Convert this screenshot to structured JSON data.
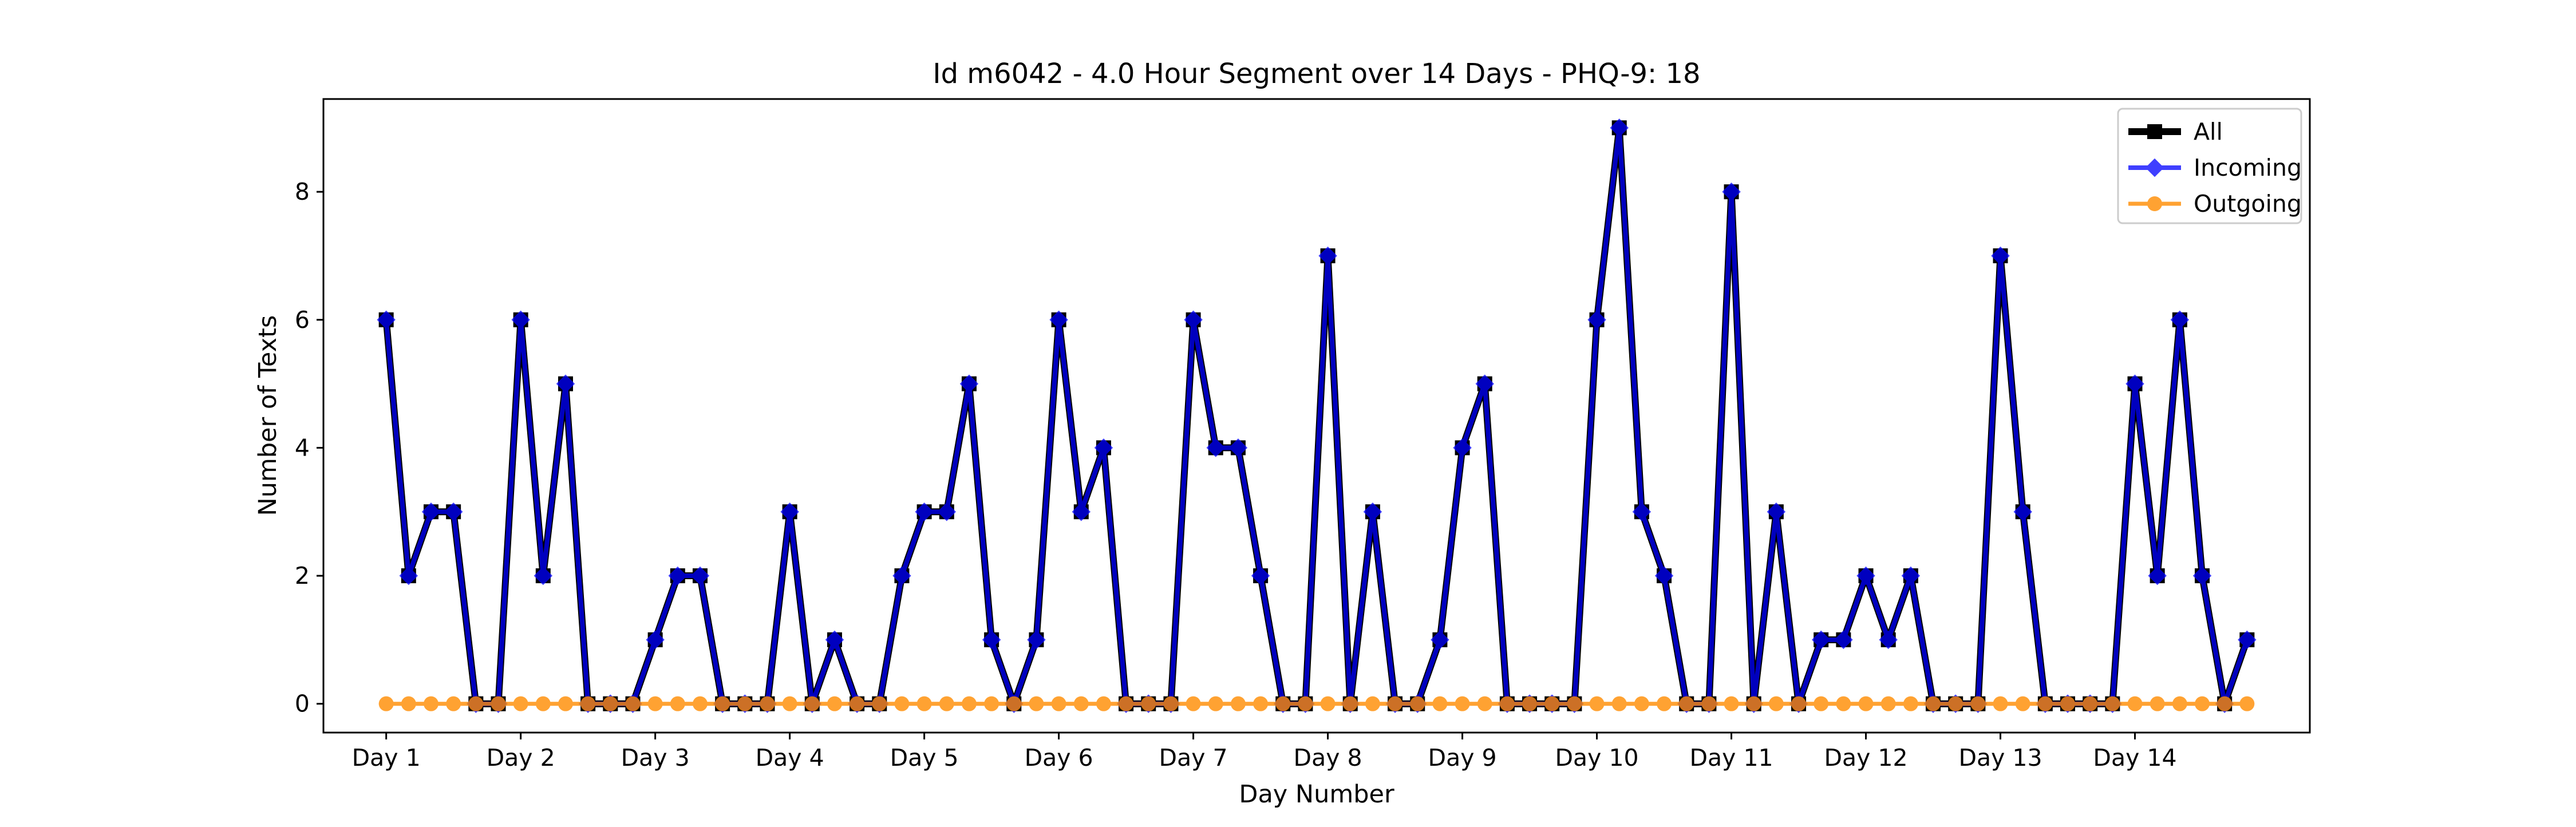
{
  "chart_data": {
    "type": "line",
    "title": "Id m6042 - 4.0 Hour Segment over 14 Days - PHQ-9: 18",
    "xlabel": "Day Number",
    "ylabel": "Number of Texts",
    "x_tick_labels": [
      "Day 1",
      "Day 2",
      "Day 3",
      "Day 4",
      "Day 5",
      "Day 6",
      "Day 7",
      "Day 8",
      "Day 9",
      "Day 10",
      "Day 11",
      "Day 12",
      "Day 13",
      "Day 14"
    ],
    "y_ticks": [
      0,
      2,
      4,
      6,
      8
    ],
    "y_tick_labels": [
      "0",
      "2",
      "4",
      "6",
      "8"
    ],
    "points_per_day": 6,
    "ylim": [
      -0.45,
      9.45
    ],
    "grid": false,
    "legend_position": "top-right",
    "series": [
      {
        "name": "All",
        "color": "#000000",
        "marker": "square",
        "values": [
          6,
          2,
          3,
          3,
          0,
          0,
          6,
          2,
          5,
          0,
          0,
          0,
          1,
          2,
          2,
          0,
          0,
          0,
          3,
          0,
          1,
          0,
          0,
          2,
          3,
          3,
          5,
          1,
          0,
          1,
          6,
          3,
          4,
          0,
          0,
          0,
          6,
          4,
          4,
          2,
          0,
          0,
          7,
          0,
          3,
          0,
          0,
          1,
          4,
          5,
          0,
          0,
          0,
          0,
          6,
          9,
          3,
          2,
          0,
          0,
          8,
          0,
          3,
          0,
          1,
          1,
          2,
          1,
          2,
          0,
          0,
          0,
          7,
          3,
          0,
          0,
          0,
          0,
          5,
          2,
          6,
          2,
          0,
          1
        ]
      },
      {
        "name": "Incoming",
        "color": "#0000ff",
        "marker": "diamond",
        "values": [
          6,
          2,
          3,
          3,
          0,
          0,
          6,
          2,
          5,
          0,
          0,
          0,
          1,
          2,
          2,
          0,
          0,
          0,
          3,
          0,
          1,
          0,
          0,
          2,
          3,
          3,
          5,
          1,
          0,
          1,
          6,
          3,
          4,
          0,
          0,
          0,
          6,
          4,
          4,
          2,
          0,
          0,
          7,
          0,
          3,
          0,
          0,
          1,
          4,
          5,
          0,
          0,
          0,
          0,
          6,
          9,
          3,
          2,
          0,
          0,
          8,
          0,
          3,
          0,
          1,
          1,
          2,
          1,
          2,
          0,
          0,
          0,
          7,
          3,
          0,
          0,
          0,
          0,
          5,
          2,
          6,
          2,
          0,
          1
        ]
      },
      {
        "name": "Outgoing",
        "color": "#ff8c00",
        "marker": "circle",
        "values": [
          0,
          0,
          0,
          0,
          0,
          0,
          0,
          0,
          0,
          0,
          0,
          0,
          0,
          0,
          0,
          0,
          0,
          0,
          0,
          0,
          0,
          0,
          0,
          0,
          0,
          0,
          0,
          0,
          0,
          0,
          0,
          0,
          0,
          0,
          0,
          0,
          0,
          0,
          0,
          0,
          0,
          0,
          0,
          0,
          0,
          0,
          0,
          0,
          0,
          0,
          0,
          0,
          0,
          0,
          0,
          0,
          0,
          0,
          0,
          0,
          0,
          0,
          0,
          0,
          0,
          0,
          0,
          0,
          0,
          0,
          0,
          0,
          0,
          0,
          0,
          0,
          0,
          0,
          0,
          0,
          0,
          0,
          0,
          0
        ]
      }
    ]
  }
}
